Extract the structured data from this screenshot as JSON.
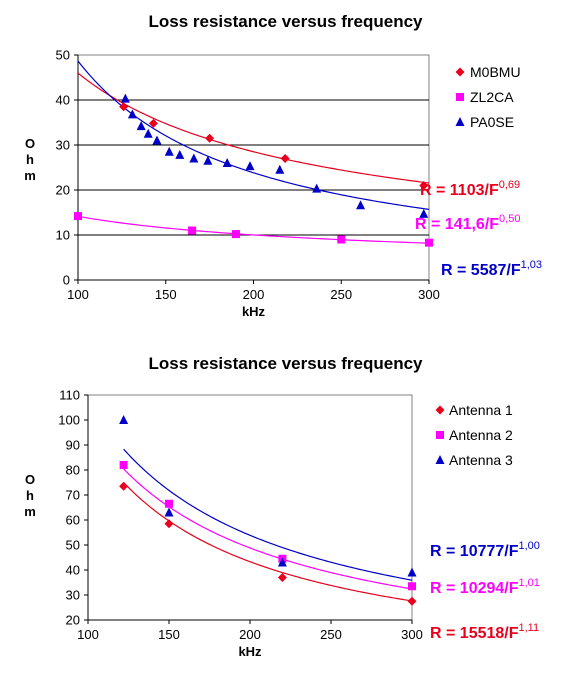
{
  "chart_data": [
    {
      "type": "scatter",
      "title": "Loss resistance versus frequency",
      "xlabel": "kHz",
      "ylabel": "Ohm",
      "xlim": [
        100,
        300
      ],
      "ylim": [
        0,
        50
      ],
      "xticks": [
        100,
        150,
        200,
        250,
        300
      ],
      "yticks": [
        0,
        10,
        20,
        30,
        40,
        50
      ],
      "grid": "horizontal",
      "legend": "top-right",
      "series": [
        {
          "name": "M0BMU",
          "color": "#e8001c",
          "marker": "diamond",
          "x": [
            126,
            143,
            175,
            218,
            297
          ],
          "y": [
            38.5,
            34.8,
            31.5,
            27,
            21
          ],
          "fit": {
            "a": 1103,
            "b": 0.69,
            "label": "R = 1103/F",
            "exponent": "0,69"
          }
        },
        {
          "name": "ZL2CA",
          "color": "#ff00ff",
          "marker": "square",
          "x": [
            100,
            165,
            190,
            250,
            300
          ],
          "y": [
            14.2,
            11,
            10.2,
            9,
            8.3
          ],
          "fit": {
            "a": 141.6,
            "b": 0.5,
            "label": "R = 141,6/F",
            "exponent": "0,50"
          }
        },
        {
          "name": "PA0SE",
          "color": "#0000c8",
          "marker": "triangle",
          "x": [
            127,
            131,
            136,
            140,
            145,
            152,
            158,
            166,
            174,
            185,
            198,
            215,
            236,
            261,
            297
          ],
          "y": [
            40.3,
            36.8,
            34.2,
            32.5,
            31,
            28.5,
            27.8,
            27,
            26.5,
            26,
            25.3,
            24.5,
            20.3,
            16.6,
            14.7
          ],
          "fit": {
            "a": 5587,
            "b": 1.03,
            "label": "R = 5587/F",
            "exponent": "1,03"
          }
        }
      ]
    },
    {
      "type": "scatter",
      "title": "Loss resistance versus frequency",
      "xlabel": "kHz",
      "ylabel": "Ohm",
      "xlim": [
        100,
        300
      ],
      "ylim": [
        20,
        110
      ],
      "xticks": [
        100,
        150,
        200,
        250,
        300
      ],
      "yticks": [
        20,
        30,
        40,
        50,
        60,
        70,
        80,
        90,
        100,
        110
      ],
      "grid": "none",
      "legend": "top-right",
      "series": [
        {
          "name": "Antenna 1",
          "color": "#e8001c",
          "marker": "diamond",
          "x": [
            122,
            150,
            220,
            300
          ],
          "y": [
            73.5,
            58.5,
            37,
            27.5
          ],
          "fit": {
            "a": 15518,
            "b": 1.11,
            "label": "R = 15518/F",
            "exponent": "1,11"
          }
        },
        {
          "name": "Antenna 2",
          "color": "#ff00ff",
          "marker": "square",
          "x": [
            122,
            150,
            220,
            300
          ],
          "y": [
            82,
            66.5,
            44.5,
            33.5
          ],
          "fit": {
            "a": 10294,
            "b": 1.01,
            "label": "R = 10294/F",
            "exponent": "1,01"
          }
        },
        {
          "name": "Antenna 3",
          "color": "#0000c8",
          "marker": "triangle",
          "x": [
            122,
            150,
            220,
            300
          ],
          "y": [
            100,
            63,
            43,
            39
          ],
          "fit": {
            "a": 10777,
            "b": 1.0,
            "label": "R = 10777/F",
            "exponent": "1,00"
          }
        }
      ]
    }
  ]
}
